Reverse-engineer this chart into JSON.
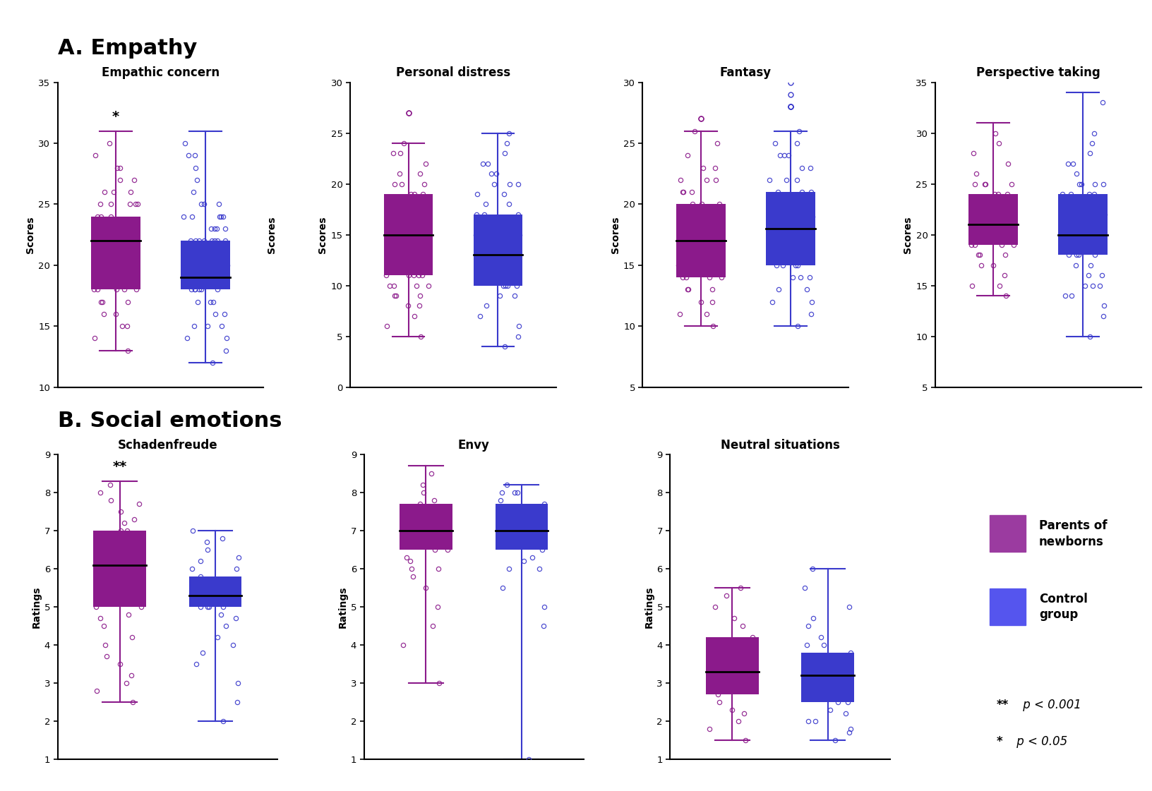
{
  "section_A_title": "A. Empathy",
  "section_B_title": "B. Social emotions",
  "empathy_subplots": [
    {
      "title": "Empathic concern",
      "ylabel": "Scores",
      "ylabel_right": "Scores",
      "ylim": [
        10,
        35
      ],
      "yticks": [
        10,
        15,
        20,
        25,
        30,
        35
      ],
      "significance": "*",
      "parent": {
        "median": 22,
        "q1": 18,
        "q3": 24,
        "whisker_low": 13,
        "whisker_high": 31,
        "outliers_above": [],
        "dots_y": [
          13,
          14,
          15,
          15,
          16,
          16,
          17,
          17,
          17,
          18,
          18,
          18,
          18,
          18,
          19,
          19,
          19,
          19,
          19,
          19,
          20,
          20,
          20,
          20,
          20,
          20,
          20,
          20,
          20,
          21,
          21,
          21,
          21,
          21,
          21,
          21,
          21,
          22,
          22,
          22,
          22,
          22,
          22,
          22,
          22,
          23,
          23,
          23,
          23,
          24,
          24,
          24,
          25,
          25,
          25,
          25,
          25,
          26,
          26,
          26,
          27,
          27,
          28,
          28,
          29,
          30
        ]
      },
      "control": {
        "median": 19,
        "q1": 18,
        "q3": 22,
        "whisker_low": 12,
        "whisker_high": 31,
        "outliers_above": [],
        "dots_y": [
          12,
          13,
          14,
          14,
          15,
          15,
          15,
          16,
          16,
          17,
          17,
          17,
          18,
          18,
          18,
          18,
          18,
          18,
          19,
          19,
          19,
          19,
          19,
          19,
          19,
          19,
          20,
          20,
          20,
          20,
          20,
          20,
          20,
          21,
          21,
          21,
          21,
          21,
          21,
          22,
          22,
          22,
          22,
          22,
          22,
          22,
          22,
          23,
          23,
          23,
          23,
          24,
          24,
          24,
          24,
          24,
          25,
          25,
          25,
          26,
          27,
          28,
          29,
          29,
          30
        ]
      }
    },
    {
      "title": "Personal distress",
      "ylabel": "Scores",
      "ylabel_right": null,
      "ylim": [
        0,
        30
      ],
      "yticks": [
        0,
        5,
        10,
        15,
        20,
        25,
        30
      ],
      "significance": null,
      "parent": {
        "median": 15,
        "q1": 11,
        "q3": 19,
        "whisker_low": 5,
        "whisker_high": 24,
        "outliers_above": [
          27,
          27
        ],
        "dots_y": [
          5,
          6,
          7,
          8,
          8,
          9,
          9,
          9,
          10,
          10,
          10,
          10,
          11,
          11,
          11,
          11,
          11,
          12,
          12,
          12,
          12,
          13,
          13,
          13,
          14,
          14,
          15,
          15,
          15,
          15,
          16,
          16,
          16,
          16,
          17,
          17,
          17,
          18,
          18,
          19,
          19,
          19,
          20,
          20,
          20,
          21,
          21,
          22,
          23,
          23,
          24
        ]
      },
      "control": {
        "median": 13,
        "q1": 10,
        "q3": 17,
        "whisker_low": 4,
        "whisker_high": 25,
        "outliers_above": [],
        "dots_y": [
          4,
          5,
          6,
          7,
          8,
          9,
          9,
          10,
          10,
          10,
          10,
          11,
          11,
          11,
          12,
          12,
          12,
          13,
          13,
          13,
          13,
          14,
          14,
          14,
          14,
          15,
          15,
          15,
          16,
          16,
          16,
          17,
          17,
          17,
          18,
          18,
          19,
          19,
          20,
          20,
          20,
          21,
          21,
          22,
          22,
          23,
          24,
          25
        ]
      }
    },
    {
      "title": "Fantasy",
      "ylabel": "Scores",
      "ylabel_right": null,
      "ylim": [
        5,
        30
      ],
      "yticks": [
        5,
        10,
        15,
        20,
        25,
        30
      ],
      "significance": null,
      "parent": {
        "median": 17,
        "q1": 14,
        "q3": 20,
        "whisker_low": 10,
        "whisker_high": 26,
        "outliers_above": [
          27,
          27
        ],
        "dots_y": [
          10,
          11,
          11,
          12,
          12,
          13,
          13,
          13,
          14,
          14,
          14,
          14,
          15,
          15,
          15,
          15,
          16,
          16,
          16,
          16,
          16,
          17,
          17,
          17,
          17,
          18,
          18,
          18,
          19,
          19,
          19,
          20,
          20,
          20,
          21,
          21,
          21,
          22,
          22,
          22,
          23,
          23,
          24,
          25,
          26
        ]
      },
      "control": {
        "median": 18,
        "q1": 15,
        "q3": 21,
        "whisker_low": 10,
        "whisker_high": 26,
        "outliers_above": [
          28,
          28,
          28,
          29,
          30
        ],
        "dots_y": [
          10,
          11,
          12,
          12,
          13,
          13,
          14,
          14,
          14,
          15,
          15,
          15,
          15,
          16,
          16,
          16,
          16,
          17,
          17,
          17,
          17,
          17,
          18,
          18,
          18,
          18,
          19,
          19,
          19,
          19,
          20,
          20,
          20,
          21,
          21,
          21,
          22,
          22,
          22,
          23,
          23,
          24,
          24,
          24,
          25,
          25,
          26
        ]
      }
    },
    {
      "title": "Perspective taking",
      "ylabel": "Scores",
      "ylabel_right": null,
      "ylim": [
        5,
        35
      ],
      "yticks": [
        5,
        10,
        15,
        20,
        25,
        30,
        35
      ],
      "significance": null,
      "parent": {
        "median": 21,
        "q1": 19,
        "q3": 24,
        "whisker_low": 14,
        "whisker_high": 31,
        "outliers_above": [],
        "dots_y": [
          14,
          15,
          15,
          16,
          17,
          17,
          18,
          18,
          18,
          19,
          19,
          19,
          19,
          20,
          20,
          20,
          20,
          21,
          21,
          21,
          21,
          22,
          22,
          22,
          22,
          22,
          23,
          23,
          23,
          24,
          24,
          24,
          25,
          25,
          25,
          25,
          26,
          27,
          28,
          29,
          30
        ]
      },
      "control": {
        "median": 20,
        "q1": 18,
        "q3": 24,
        "whisker_low": 10,
        "whisker_high": 34,
        "outliers_above": [],
        "dots_y": [
          10,
          12,
          13,
          14,
          14,
          15,
          15,
          15,
          16,
          16,
          17,
          17,
          18,
          18,
          18,
          18,
          19,
          19,
          19,
          20,
          20,
          20,
          20,
          20,
          21,
          21,
          21,
          22,
          22,
          22,
          22,
          23,
          23,
          23,
          24,
          24,
          24,
          24,
          25,
          25,
          25,
          25,
          26,
          27,
          27,
          28,
          29,
          30,
          33
        ]
      }
    }
  ],
  "social_subplots": [
    {
      "title": "Schadenfreude",
      "ylabel": "Ratings",
      "ylabel_right": null,
      "ylim": [
        1,
        9
      ],
      "yticks": [
        1,
        2,
        3,
        4,
        5,
        6,
        7,
        8,
        9
      ],
      "significance": "**",
      "parent": {
        "median": 6.1,
        "q1": 5.0,
        "q3": 7.0,
        "whisker_low": 2.5,
        "whisker_high": 8.3,
        "outliers_above": [],
        "dots_y": [
          2.5,
          2.8,
          3.0,
          3.2,
          3.5,
          3.7,
          4.0,
          4.2,
          4.5,
          4.7,
          4.8,
          5.0,
          5.0,
          5.2,
          5.3,
          5.5,
          5.5,
          5.7,
          5.8,
          6.0,
          6.0,
          6.0,
          6.2,
          6.3,
          6.5,
          6.7,
          6.8,
          7.0,
          7.0,
          7.2,
          7.3,
          7.5,
          7.7,
          7.8,
          8.0,
          8.2
        ]
      },
      "control": {
        "median": 5.3,
        "q1": 5.0,
        "q3": 5.8,
        "whisker_low": 2.0,
        "whisker_high": 7.0,
        "outliers_above": [],
        "dots_y": [
          2.0,
          2.5,
          3.0,
          3.5,
          3.8,
          4.0,
          4.2,
          4.5,
          4.7,
          4.8,
          5.0,
          5.0,
          5.0,
          5.0,
          5.2,
          5.2,
          5.3,
          5.3,
          5.5,
          5.5,
          5.5,
          5.7,
          5.7,
          5.8,
          6.0,
          6.0,
          6.2,
          6.3,
          6.5,
          6.7,
          6.8,
          7.0
        ]
      }
    },
    {
      "title": "Envy",
      "ylabel": "Ratings",
      "ylabel_right": null,
      "ylim": [
        1,
        9
      ],
      "yticks": [
        1,
        2,
        3,
        4,
        5,
        6,
        7,
        8,
        9
      ],
      "significance": null,
      "parent": {
        "median": 7.0,
        "q1": 6.5,
        "q3": 7.7,
        "whisker_low": 3.0,
        "whisker_high": 8.7,
        "outliers_above": [],
        "dots_y": [
          3.0,
          4.0,
          4.5,
          5.0,
          5.5,
          5.8,
          6.0,
          6.0,
          6.2,
          6.3,
          6.5,
          6.5,
          6.7,
          6.8,
          7.0,
          7.0,
          7.0,
          7.0,
          7.2,
          7.3,
          7.5,
          7.5,
          7.7,
          7.8,
          8.0,
          8.2,
          8.5
        ]
      },
      "control": {
        "median": 7.0,
        "q1": 6.5,
        "q3": 7.7,
        "whisker_low": 1.0,
        "whisker_high": 8.2,
        "outliers_above": [],
        "dots_y": [
          1.0,
          4.5,
          5.0,
          5.5,
          6.0,
          6.0,
          6.2,
          6.3,
          6.5,
          6.7,
          6.8,
          7.0,
          7.0,
          7.0,
          7.2,
          7.3,
          7.5,
          7.5,
          7.7,
          7.8,
          8.0,
          8.0,
          8.0,
          8.2
        ]
      }
    },
    {
      "title": "Neutral situations",
      "ylabel": "Ratings",
      "ylabel_right": null,
      "ylim": [
        1,
        9
      ],
      "yticks": [
        1,
        2,
        3,
        4,
        5,
        6,
        7,
        8,
        9
      ],
      "significance": null,
      "parent": {
        "median": 3.3,
        "q1": 2.7,
        "q3": 4.2,
        "whisker_low": 1.5,
        "whisker_high": 5.5,
        "outliers_above": [],
        "dots_y": [
          1.5,
          1.8,
          2.0,
          2.2,
          2.3,
          2.5,
          2.7,
          2.8,
          3.0,
          3.0,
          3.2,
          3.3,
          3.5,
          3.5,
          3.7,
          3.8,
          4.0,
          4.0,
          4.2,
          4.5,
          4.7,
          5.0,
          5.3,
          5.5
        ]
      },
      "control": {
        "median": 3.2,
        "q1": 2.5,
        "q3": 3.8,
        "whisker_low": 1.5,
        "whisker_high": 6.0,
        "outliers_above": [],
        "dots_y": [
          1.5,
          1.7,
          1.8,
          2.0,
          2.0,
          2.2,
          2.3,
          2.5,
          2.5,
          2.7,
          2.8,
          3.0,
          3.0,
          3.2,
          3.3,
          3.5,
          3.5,
          3.7,
          3.8,
          4.0,
          4.0,
          4.2,
          4.5,
          4.7,
          5.0,
          5.5,
          6.0
        ]
      }
    }
  ],
  "parent_color": "#8B1A8B",
  "control_color": "#3A3ACC",
  "legend_parent_color": "#9B3BA0",
  "legend_control_color": "#5555EE",
  "legend_parent": "Parents of\nnewborns",
  "legend_control": "Control\ngroup",
  "sig_double_bold": "**",
  "sig_double_italic": " p < 0.001",
  "sig_single_bold": "*",
  "sig_single_italic": " p < 0.05"
}
